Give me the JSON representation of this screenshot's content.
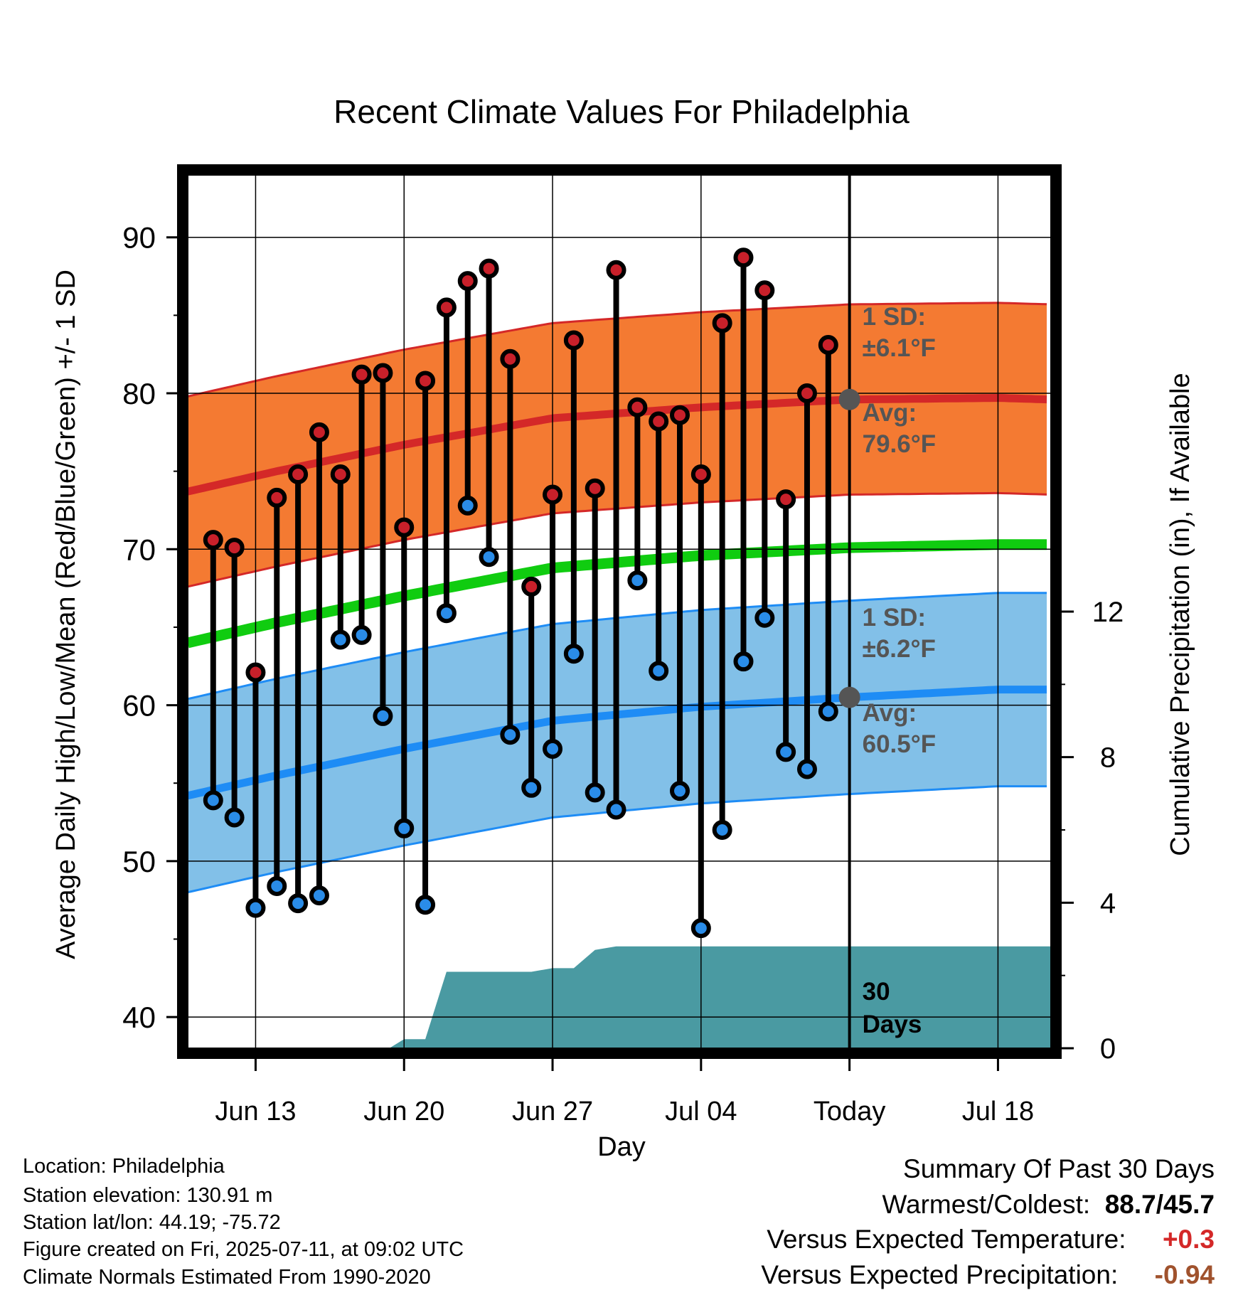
{
  "chart_data": {
    "type": "line",
    "title": "Recent Climate Values For Philadelphia",
    "xlabel": "Day",
    "ylabel": "Average Daily High/Low/Mean (Red/Blue/Green) +/- 1 SD",
    "y2label": "Cumulative Precipitation (in), If Available",
    "ylim": [
      38,
      94
    ],
    "y2lim": [
      0,
      24
    ],
    "y_ticks": [
      "40",
      "50",
      "60",
      "70",
      "80",
      "90"
    ],
    "y2_ticks": [
      "0",
      "4",
      "8",
      "12"
    ],
    "x_ticks": [
      {
        "day": 13,
        "label": "Jun 13"
      },
      {
        "day": 20,
        "label": "Jun 20"
      },
      {
        "day": 27,
        "label": "Jun 27"
      },
      {
        "day": 34,
        "label": "Jul 04"
      },
      {
        "day": 41,
        "label": "Today"
      },
      {
        "day": 48,
        "label": "Jul 18"
      }
    ],
    "xlim": [
      9.8,
      50.5
    ],
    "grid": true,
    "today_day": 41,
    "days": [
      11,
      12,
      13,
      14,
      15,
      16,
      17,
      18,
      19,
      20,
      21,
      22,
      23,
      24,
      25,
      26,
      27,
      28,
      29,
      30,
      31,
      32,
      33,
      34,
      35,
      36,
      37,
      38,
      39,
      40
    ],
    "daily_high": [
      70.6,
      70.1,
      62.1,
      73.3,
      74.8,
      77.5,
      74.8,
      81.2,
      81.3,
      71.4,
      80.8,
      85.5,
      87.2,
      88.0,
      82.2,
      67.6,
      73.5,
      83.4,
      73.9,
      87.9,
      79.1,
      78.2,
      78.6,
      74.8,
      84.5,
      88.7,
      86.6,
      73.2,
      80.0,
      83.1
    ],
    "daily_low": [
      53.9,
      52.8,
      47.0,
      48.4,
      47.3,
      47.8,
      64.2,
      64.5,
      59.3,
      52.1,
      47.2,
      65.9,
      72.8,
      69.5,
      58.1,
      54.7,
      57.2,
      63.3,
      54.4,
      53.3,
      68.0,
      62.2,
      54.5,
      45.7,
      52.0,
      62.8,
      65.6,
      57.0,
      55.9,
      59.6
    ],
    "normal_curve_days": [
      9.8,
      14,
      20,
      27,
      34,
      41,
      48,
      50.5
    ],
    "normal_high": [
      73.7,
      75.0,
      76.7,
      78.4,
      79.1,
      79.6,
      79.7,
      79.6
    ],
    "normal_low": [
      54.2,
      55.5,
      57.2,
      59.0,
      59.9,
      60.5,
      61.0,
      61.0
    ],
    "normal_mean": [
      64.0,
      65.3,
      67.0,
      68.8,
      69.6,
      70.1,
      70.3,
      70.3
    ],
    "high_sd": 6.1,
    "low_sd": 6.2,
    "precip_days": [
      9.8,
      19.3,
      20,
      21,
      22,
      23,
      24,
      25,
      26,
      27,
      28,
      29,
      30,
      31,
      32,
      33,
      34,
      40,
      41,
      50.5
    ],
    "precip_cumulative": [
      0,
      0,
      0.25,
      0.25,
      2.1,
      2.1,
      2.1,
      2.1,
      2.1,
      2.2,
      2.2,
      2.7,
      2.8,
      2.8,
      2.8,
      2.8,
      2.8,
      2.8,
      2.8,
      2.8
    ],
    "series": [
      {
        "name": "",
        "color": "#d02020"
      },
      {
        "name": "",
        "color": "#1e90ff"
      }
    ],
    "colors": {
      "high_band": "#f47a32",
      "high_line": "#d42828",
      "low_band": "#82c0e8",
      "low_line": "#1e8cf5",
      "mean_line": "#10cc10",
      "precip": "#4a9aa2",
      "high_dot": "#c8202a",
      "low_dot": "#2a8ce8",
      "annot": "#555555",
      "marker": "#555555"
    },
    "annotations": {
      "high_sd_label": "1 SD:",
      "high_sd_value": "±6.1°F",
      "high_avg_label": "Avg:",
      "high_avg_value": "79.6°F",
      "low_sd_label": "1 SD:",
      "low_sd_value": "±6.2°F",
      "low_avg_label": "Avg:",
      "low_avg_value": "60.5°F",
      "days_num": "30",
      "days_word": "Days"
    }
  },
  "info": {
    "location": "Location: Philadelphia",
    "elevation": "Station elevation: 130.91 m",
    "latlon": "Station lat/lon: 44.19; -75.72",
    "created": "Figure created on Fri, 2025-07-11, at 09:02 UTC",
    "normals": "Climate Normals Estimated From 1990-2020"
  },
  "summary": {
    "title": "Summary Of Past 30 Days",
    "warm_cold_label": "Warmest/Coldest:",
    "warm": "88.7",
    "cold": "45.7",
    "sep": "/",
    "temp_label": "Versus Expected Temperature:",
    "temp_value": "+0.3",
    "temp_color": "#d42828",
    "precip_label": "Versus Expected Precipitation:",
    "precip_value": "-0.94",
    "precip_color": "#a0522d"
  }
}
